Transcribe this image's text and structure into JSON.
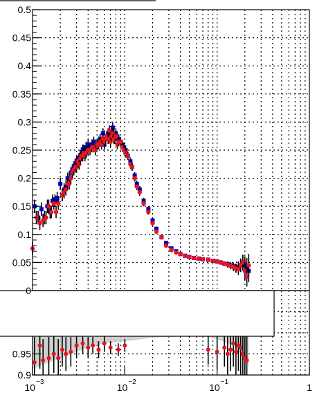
{
  "chart_data": [
    {
      "type": "scatter",
      "panel": "upper",
      "title": "",
      "xlabel": "",
      "ylabel": "",
      "x_scale": "log",
      "xlim": [
        0.001,
        1
      ],
      "ylim": [
        0,
        0.5
      ],
      "grid": true,
      "y_tick_labels": [
        "0",
        "0.05",
        "0.1",
        "0.15",
        "0.2",
        "0.25",
        "0.3",
        "0.35",
        "0.4",
        "0.45",
        "0.5"
      ],
      "colors": {
        "series_a": "#0000cc",
        "series_b": "#e8141e",
        "errors": "#000000",
        "grid": "#000000"
      },
      "series": [
        {
          "marker": "square",
          "x": [
            0.00105,
            0.00115,
            0.00125,
            0.00135,
            0.00145,
            0.00155,
            0.00165,
            0.00175,
            0.00185,
            0.002,
            0.0021,
            0.0022,
            0.0023,
            0.0024,
            0.0025,
            0.0026,
            0.0027,
            0.0028,
            0.0029,
            0.003,
            0.0031,
            0.0032,
            0.0033,
            0.0034,
            0.0035,
            0.0036,
            0.0037,
            0.0038,
            0.004,
            0.0042,
            0.0044,
            0.0046,
            0.0048,
            0.005,
            0.0052,
            0.0054,
            0.0056,
            0.0058,
            0.006,
            0.0062,
            0.0064,
            0.0066,
            0.0068,
            0.007,
            0.0072,
            0.0074,
            0.0076,
            0.0078,
            0.008,
            0.0083,
            0.0086,
            0.009,
            0.0094,
            0.0098,
            0.0102,
            0.0108,
            0.0115,
            0.012,
            0.0128,
            0.0135,
            0.0145,
            0.016,
            0.018,
            0.02,
            0.022,
            0.025,
            0.028,
            0.032,
            0.036,
            0.04,
            0.045,
            0.05,
            0.056,
            0.063,
            0.07,
            0.08,
            0.09,
            0.1,
            0.11,
            0.12,
            0.13,
            0.14,
            0.15,
            0.16,
            0.17,
            0.18,
            0.19,
            0.2,
            0.21,
            0.22
          ],
          "y": [
            0.15,
            0.13,
            0.145,
            0.13,
            0.15,
            0.14,
            0.16,
            0.16,
            0.165,
            0.19,
            0.17,
            0.18,
            0.185,
            0.2,
            0.2,
            0.21,
            0.215,
            0.22,
            0.225,
            0.23,
            0.23,
            0.235,
            0.24,
            0.245,
            0.25,
            0.25,
            0.245,
            0.255,
            0.26,
            0.255,
            0.26,
            0.265,
            0.26,
            0.26,
            0.265,
            0.27,
            0.265,
            0.28,
            0.26,
            0.27,
            0.275,
            0.28,
            0.28,
            0.275,
            0.28,
            0.29,
            0.28,
            0.275,
            0.28,
            0.27,
            0.27,
            0.265,
            0.26,
            0.255,
            0.25,
            0.24,
            0.23,
            0.22,
            0.205,
            0.19,
            0.18,
            0.16,
            0.145,
            0.125,
            0.11,
            0.095,
            0.085,
            0.075,
            0.07,
            0.065,
            0.062,
            0.06,
            0.058,
            0.057,
            0.056,
            0.055,
            0.053,
            0.052,
            0.05,
            0.048,
            0.047,
            0.045,
            0.043,
            0.04,
            0.042,
            0.045,
            0.05,
            0.045,
            0.04,
            0.035
          ],
          "yerr": [
            0.012,
            0.012,
            0.012,
            0.012,
            0.012,
            0.012,
            0.011,
            0.011,
            0.011,
            0.011,
            0.011,
            0.011,
            0.011,
            0.01,
            0.01,
            0.01,
            0.01,
            0.01,
            0.01,
            0.01,
            0.01,
            0.01,
            0.01,
            0.01,
            0.01,
            0.01,
            0.01,
            0.01,
            0.009,
            0.009,
            0.009,
            0.009,
            0.009,
            0.009,
            0.009,
            0.009,
            0.009,
            0.009,
            0.009,
            0.009,
            0.009,
            0.009,
            0.009,
            0.009,
            0.009,
            0.009,
            0.009,
            0.009,
            0.009,
            0.008,
            0.008,
            0.008,
            0.008,
            0.008,
            0.008,
            0.007,
            0.007,
            0.007,
            0.006,
            0.006,
            0.006,
            0.005,
            0.005,
            0.004,
            0.004,
            0.004,
            0.003,
            0.003,
            0.003,
            0.003,
            0.003,
            0.003,
            0.003,
            0.003,
            0.003,
            0.003,
            0.003,
            0.003,
            0.004,
            0.004,
            0.005,
            0.006,
            0.007,
            0.008,
            0.01,
            0.012,
            0.014,
            0.016,
            0.018,
            0.02
          ]
        },
        {
          "marker": "circle",
          "x": [
            0.001,
            0.0011,
            0.0012,
            0.0013,
            0.0014,
            0.0015,
            0.0016,
            0.0017,
            0.0018,
            0.0019,
            0.0021,
            0.0022,
            0.0023,
            0.0024,
            0.0025,
            0.0026,
            0.0027,
            0.0028,
            0.0029,
            0.003,
            0.0031,
            0.0032,
            0.0033,
            0.0034,
            0.0035,
            0.0036,
            0.0037,
            0.0038,
            0.004,
            0.0042,
            0.0044,
            0.0046,
            0.0048,
            0.005,
            0.0052,
            0.0054,
            0.0056,
            0.0058,
            0.006,
            0.0062,
            0.0064,
            0.0066,
            0.0068,
            0.007,
            0.0072,
            0.0074,
            0.0076,
            0.0078,
            0.008,
            0.0083,
            0.0086,
            0.009,
            0.0094,
            0.0098,
            0.0102,
            0.0108,
            0.0115,
            0.012,
            0.0128,
            0.0135,
            0.0145,
            0.016,
            0.018,
            0.02,
            0.022,
            0.025,
            0.028,
            0.032,
            0.036,
            0.04,
            0.045,
            0.05,
            0.056,
            0.063,
            0.07,
            0.08,
            0.09,
            0.1,
            0.11,
            0.12,
            0.13,
            0.14,
            0.15,
            0.16,
            0.17,
            0.18,
            0.19,
            0.2,
            0.21,
            0.22
          ],
          "y": [
            0.075,
            0.13,
            0.12,
            0.125,
            0.13,
            0.15,
            0.14,
            0.155,
            0.14,
            0.155,
            0.17,
            0.175,
            0.18,
            0.19,
            0.19,
            0.2,
            0.21,
            0.215,
            0.22,
            0.22,
            0.23,
            0.225,
            0.235,
            0.24,
            0.24,
            0.245,
            0.24,
            0.245,
            0.25,
            0.25,
            0.255,
            0.255,
            0.25,
            0.26,
            0.26,
            0.265,
            0.26,
            0.27,
            0.265,
            0.27,
            0.275,
            0.27,
            0.285,
            0.265,
            0.275,
            0.28,
            0.27,
            0.27,
            0.275,
            0.26,
            0.265,
            0.265,
            0.255,
            0.25,
            0.245,
            0.24,
            0.225,
            0.22,
            0.2,
            0.185,
            0.175,
            0.155,
            0.14,
            0.12,
            0.105,
            0.095,
            0.08,
            0.072,
            0.068,
            0.065,
            0.062,
            0.06,
            0.058,
            0.057,
            0.056,
            0.055,
            0.053,
            0.052,
            0.05,
            0.048,
            0.046,
            0.044,
            0.042,
            0.04,
            0.038,
            0.045,
            0.05,
            0.035,
            0.025,
            0.045
          ],
          "yerr": [
            0.012,
            0.012,
            0.012,
            0.012,
            0.012,
            0.012,
            0.011,
            0.011,
            0.011,
            0.011,
            0.011,
            0.011,
            0.011,
            0.01,
            0.01,
            0.01,
            0.01,
            0.01,
            0.01,
            0.01,
            0.01,
            0.01,
            0.01,
            0.01,
            0.01,
            0.01,
            0.01,
            0.01,
            0.009,
            0.009,
            0.009,
            0.009,
            0.009,
            0.009,
            0.009,
            0.009,
            0.009,
            0.009,
            0.009,
            0.009,
            0.009,
            0.009,
            0.009,
            0.009,
            0.009,
            0.009,
            0.009,
            0.009,
            0.009,
            0.008,
            0.008,
            0.008,
            0.008,
            0.008,
            0.008,
            0.007,
            0.007,
            0.007,
            0.006,
            0.006,
            0.006,
            0.005,
            0.005,
            0.004,
            0.004,
            0.004,
            0.003,
            0.003,
            0.003,
            0.003,
            0.003,
            0.003,
            0.003,
            0.003,
            0.003,
            0.003,
            0.003,
            0.003,
            0.004,
            0.004,
            0.005,
            0.006,
            0.007,
            0.008,
            0.01,
            0.012,
            0.014,
            0.016,
            0.018,
            0.02
          ]
        }
      ]
    },
    {
      "type": "scatter",
      "panel": "lower-ratio",
      "title": "",
      "xlabel": "",
      "ylabel": "",
      "x_scale": "log",
      "xlim": [
        0.001,
        1
      ],
      "ylim": [
        0.9,
        1.1
      ],
      "grid": true,
      "y_tick_labels": [
        "0.9",
        "0.95"
      ],
      "x_tick_labels": [
        {
          "value": 0.001,
          "base": "10",
          "exp": "−3"
        },
        {
          "value": 0.01,
          "base": "10",
          "exp": "−2"
        },
        {
          "value": 0.1,
          "base": "10",
          "exp": "−1"
        },
        {
          "value": 1,
          "base": "1",
          "exp": ""
        }
      ],
      "colors": {
        "points": "#e8141e",
        "band": "#c8c8c8",
        "errors": "#000000"
      },
      "band": {
        "x": [
          0.001,
          0.0015,
          0.002,
          0.003,
          0.004,
          0.006,
          0.008,
          0.01,
          0.015,
          0.02,
          0.03,
          0.05,
          0.08,
          0.1,
          0.15,
          0.2,
          0.22
        ],
        "lo": [
          0.915,
          0.93,
          0.94,
          0.955,
          0.965,
          0.975,
          0.978,
          0.98,
          0.985,
          0.988,
          0.99,
          0.992,
          0.99,
          0.985,
          0.97,
          0.94,
          0.92
        ],
        "hi": [
          1.085,
          1.07,
          1.06,
          1.045,
          1.035,
          1.025,
          1.022,
          1.02,
          1.015,
          1.012,
          1.01,
          1.008,
          1.01,
          1.015,
          1.03,
          1.06,
          1.08
        ]
      },
      "points": {
        "x": [
          0.00105,
          0.0012,
          0.0013,
          0.0015,
          0.0017,
          0.0019,
          0.0021,
          0.0023,
          0.0026,
          0.003,
          0.0035,
          0.004,
          0.0045,
          0.0052,
          0.006,
          0.007,
          0.0085,
          0.01,
          0.012,
          0.015,
          0.02,
          0.025,
          0.03,
          0.05,
          0.08,
          0.1,
          0.12,
          0.13,
          0.14,
          0.15,
          0.16,
          0.17,
          0.18,
          0.19,
          0.2,
          0.21
        ],
        "y": [
          0.93,
          0.97,
          0.935,
          0.94,
          0.95,
          0.94,
          0.96,
          0.95,
          0.955,
          0.97,
          0.975,
          0.965,
          0.97,
          0.96,
          0.975,
          0.965,
          0.96,
          0.97,
          1.02,
          1.04,
          1.05,
          1.06,
          1.07,
          1.02,
          0.96,
          0.955,
          0.965,
          0.95,
          0.96,
          0.975,
          0.955,
          0.97,
          0.965,
          0.95,
          0.94,
          0.935
        ],
        "yerr": [
          0.06,
          0.055,
          0.05,
          0.05,
          0.045,
          0.045,
          0.04,
          0.04,
          0.035,
          0.03,
          0.025,
          0.025,
          0.02,
          0.02,
          0.02,
          0.015,
          0.015,
          0.015,
          0.015,
          0.02,
          0.02,
          0.025,
          0.03,
          0.03,
          0.035,
          0.04,
          0.045,
          0.05,
          0.05,
          0.055,
          0.06,
          0.06,
          0.065,
          0.07,
          0.08,
          0.09
        ]
      }
    }
  ]
}
